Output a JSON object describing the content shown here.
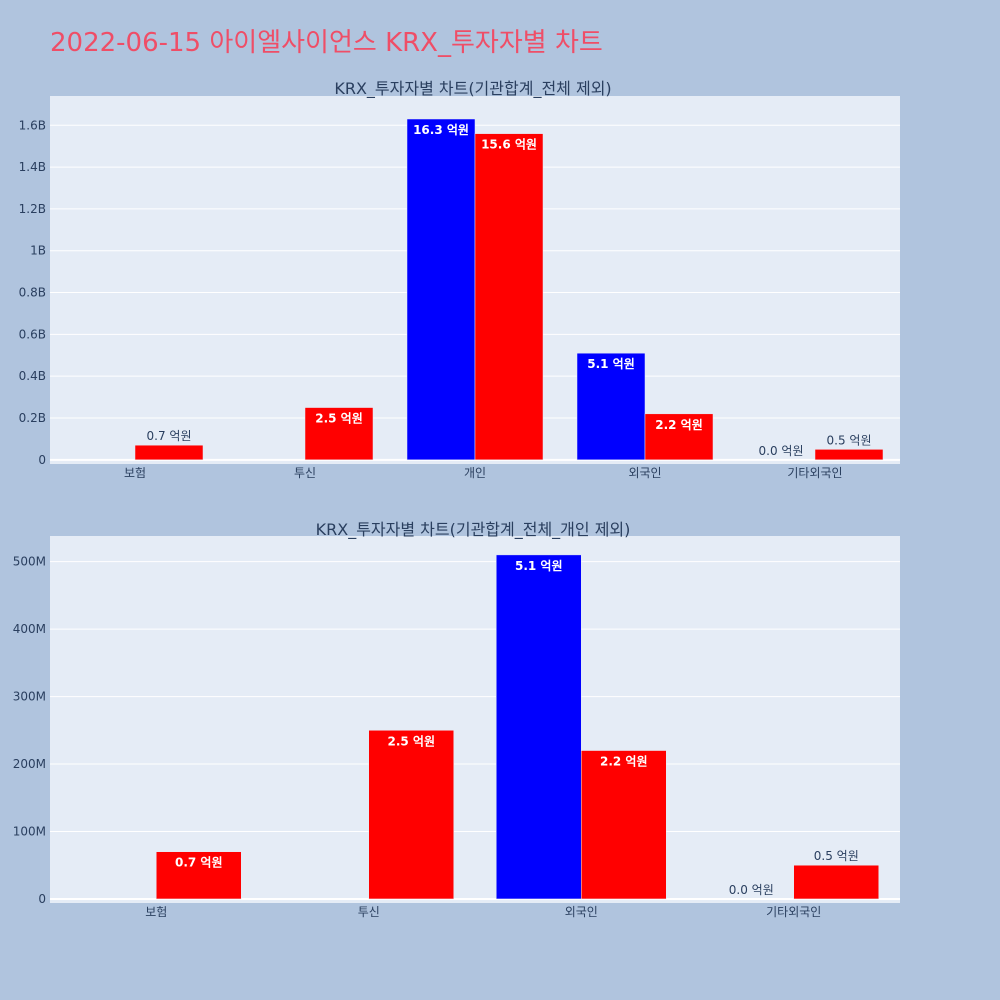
{
  "page": {
    "title": "2022-06-15 아이엘사이언스 KRX_투자자별 차트",
    "background_color": "#b0c4de",
    "title_color": "#ef4e67"
  },
  "chart_data": [
    {
      "type": "bar",
      "title": "KRX_투자자별 차트(기관합계_전체 제외)",
      "categories": [
        "보험",
        "투신",
        "개인",
        "외국인",
        "기타외국인"
      ],
      "series": [
        {
          "color": "#0000ff",
          "values": [
            0,
            0,
            1630000000,
            510000000,
            0
          ],
          "labels": [
            "",
            "",
            "16.3 억원",
            "5.1 억원",
            "0.0 억원"
          ]
        },
        {
          "color": "#ff0000",
          "values": [
            70000000,
            250000000,
            1560000000,
            220000000,
            50000000
          ],
          "labels": [
            "0.7 억원",
            "2.5 억원",
            "15.6 억원",
            "2.2 억원",
            "0.5 억원"
          ]
        }
      ],
      "ylim": [
        -20000000,
        1740000000
      ],
      "yticks": [
        0,
        200000000,
        400000000,
        600000000,
        800000000,
        1000000000,
        1200000000,
        1400000000,
        1600000000
      ],
      "ytick_labels": [
        "0",
        "0.2B",
        "0.4B",
        "0.6B",
        "0.8B",
        "1B",
        "1.2B",
        "1.4B",
        "1.6B"
      ],
      "plot_background": "#e5ecf6",
      "grid": true,
      "legend": "none",
      "xlabel": "",
      "ylabel": ""
    },
    {
      "type": "bar",
      "title": "KRX_투자자별 차트(기관합계_전체_개인 제외)",
      "categories": [
        "보험",
        "투신",
        "외국인",
        "기타외국인"
      ],
      "series": [
        {
          "color": "#0000ff",
          "values": [
            0,
            0,
            510000000,
            0
          ],
          "labels": [
            "",
            "",
            "5.1 억원",
            "0.0 억원"
          ]
        },
        {
          "color": "#ff0000",
          "values": [
            70000000,
            250000000,
            220000000,
            50000000
          ],
          "labels": [
            "0.7 억원",
            "2.5 억원",
            "2.2 억원",
            "0.5 억원"
          ]
        }
      ],
      "ylim": [
        -6000000,
        538000000
      ],
      "yticks": [
        0,
        100000000,
        200000000,
        300000000,
        400000000,
        500000000
      ],
      "ytick_labels": [
        "0",
        "100M",
        "200M",
        "300M",
        "400M",
        "500M"
      ],
      "plot_background": "#e5ecf6",
      "grid": true,
      "legend": "none",
      "xlabel": "",
      "ylabel": ""
    }
  ]
}
